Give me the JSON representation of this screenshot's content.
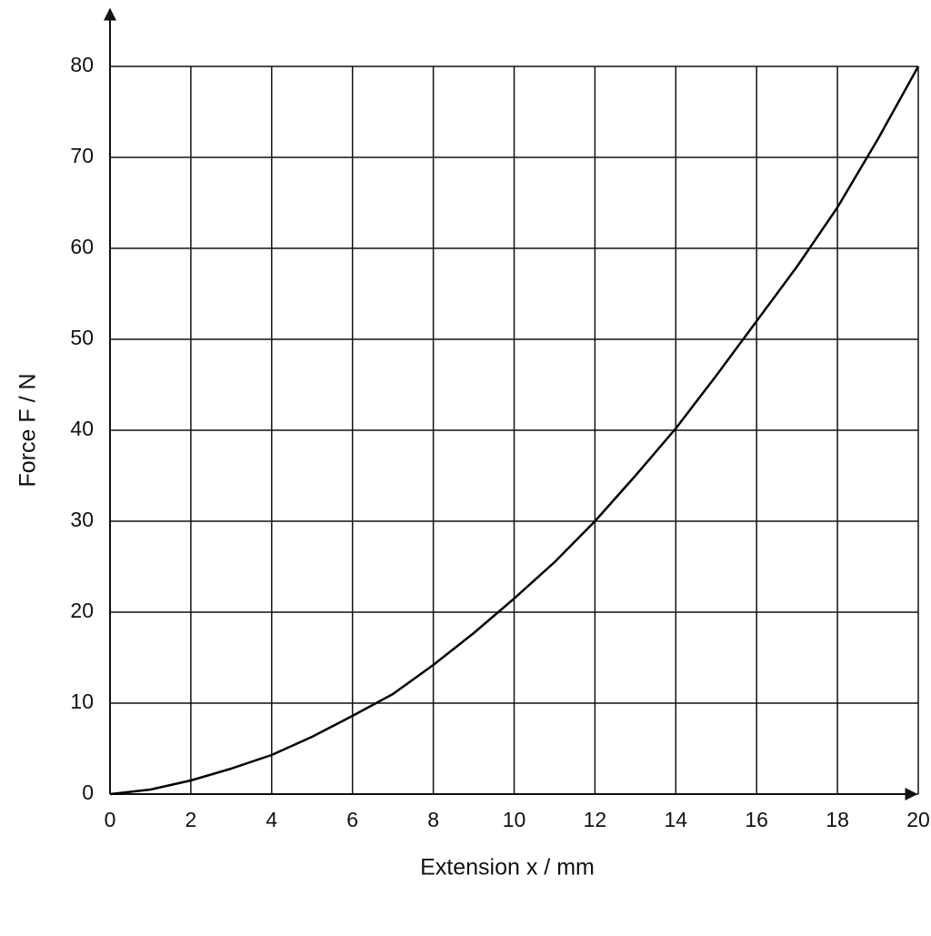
{
  "chart_data": {
    "type": "line",
    "x_label": "Extension x / mm",
    "y_label": "Force F / N",
    "x": [
      0,
      1,
      2,
      3,
      4,
      5,
      6,
      7,
      8,
      9,
      10,
      11,
      12,
      13,
      14,
      15,
      16,
      17,
      18,
      19,
      20
    ],
    "series": [
      {
        "color": "#000000",
        "values": [
          0,
          0.5,
          1.5,
          2.8,
          4.3,
          6.3,
          8.6,
          11,
          14.2,
          17.7,
          21.5,
          25.5,
          30,
          35,
          40.2,
          46,
          52,
          58,
          64.5,
          72,
          80
        ]
      }
    ],
    "xlim": [
      0,
      20
    ],
    "ylim": [
      0,
      80
    ],
    "xticks": [
      0,
      2,
      4,
      6,
      8,
      10,
      12,
      14,
      16,
      18,
      20
    ],
    "yticks": [
      0,
      10,
      20,
      30,
      40,
      50,
      60,
      70,
      80
    ],
    "grid": true
  }
}
